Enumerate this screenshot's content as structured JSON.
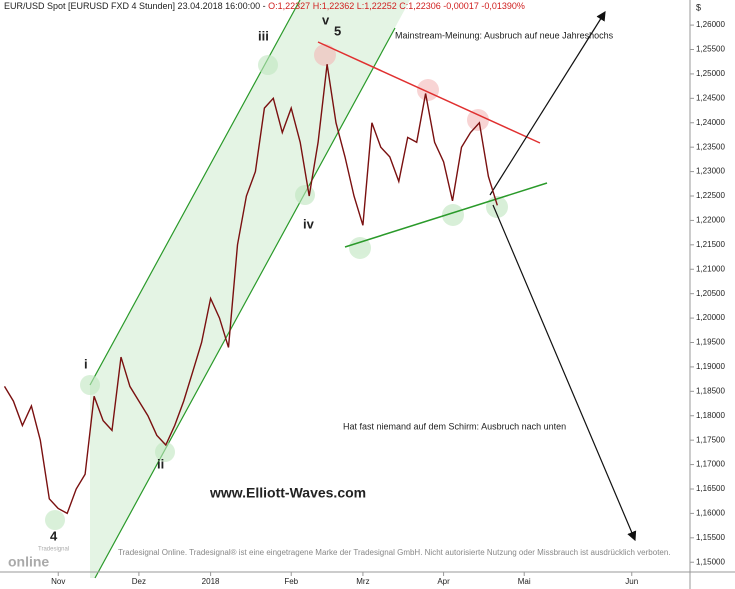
{
  "chart_data": {
    "type": "line",
    "title": "EUR/USD Spot [EURUSD FXD  4 Stunden] 23.04.2018 16:00:00 -",
    "ohlc": "O:1,22327 H:1,22362 L:1,22252 C:1,22306 -0,00017 -0,01390%",
    "currency": "$",
    "watermark": "www.Elliott-Waves.com",
    "footer": "Tradesignal Online. Tradesignal® ist eine eingetragene Marke der Tradesignal GmbH. Nicht autorisierte Nutzung oder Missbrauch ist ausdrücklich verboten.",
    "logo": "online",
    "logo_small": "Tradesignal",
    "notes": {
      "up": "Mainstream-Meinung: Ausbruch auf neue Jahreshochs",
      "down": "Hat fast niemand auf dem Schirm: Ausbruch nach unten"
    },
    "waves": {
      "w4": "4",
      "wi": "i",
      "wii": "ii",
      "wiii": "iii",
      "wiv": "iv",
      "wv": "v",
      "w5": "5"
    },
    "color": "#7a1010",
    "categories": [
      null,
      null,
      null,
      null,
      null,
      null,
      "Nov",
      null,
      null,
      null,
      null,
      null,
      null,
      null,
      null,
      "Dez",
      null,
      null,
      null,
      null,
      null,
      null,
      null,
      "2018",
      null,
      null,
      null,
      null,
      null,
      null,
      null,
      null,
      "Feb",
      null,
      null,
      null,
      null,
      null,
      null,
      null,
      "Mrz",
      null,
      null,
      null,
      null,
      null,
      null,
      null,
      null,
      "Apr",
      null,
      null,
      null,
      null,
      null,
      null,
      null,
      null,
      "Mai",
      null,
      null,
      null,
      null,
      null,
      null,
      null,
      null,
      null,
      null,
      null,
      "Jun",
      null,
      null,
      null,
      null,
      null,
      null
    ],
    "values": [
      1.186,
      1.183,
      1.178,
      1.182,
      1.175,
      1.163,
      1.161,
      1.16,
      1.165,
      1.168,
      1.184,
      1.179,
      1.177,
      1.192,
      1.186,
      1.183,
      1.18,
      1.176,
      1.174,
      1.178,
      1.183,
      1.189,
      1.195,
      1.204,
      1.2,
      1.194,
      1.215,
      1.225,
      1.23,
      1.243,
      1.245,
      1.238,
      1.243,
      1.236,
      1.225,
      1.236,
      1.252,
      1.24,
      1.233,
      1.225,
      1.219,
      1.24,
      1.235,
      1.233,
      1.228,
      1.237,
      1.236,
      1.246,
      1.236,
      1.232,
      1.224,
      1.235,
      1.238,
      1.24,
      1.229,
      1.2231,
      null,
      null,
      null,
      null,
      null,
      null,
      null,
      null,
      null,
      null,
      null,
      null,
      null,
      null,
      null,
      null,
      null,
      null,
      null,
      null,
      null
    ],
    "ylim": [
      1.148,
      1.2635
    ],
    "yticks": [
      {
        "value": 1.15,
        "label": "1,15000"
      },
      {
        "value": 1.155,
        "label": "1,15500"
      },
      {
        "value": 1.16,
        "label": "1,16000"
      },
      {
        "value": 1.165,
        "label": "1,16500"
      },
      {
        "value": 1.17,
        "label": "1,17000"
      },
      {
        "value": 1.175,
        "label": "1,17500"
      },
      {
        "value": 1.18,
        "label": "1,18000"
      },
      {
        "value": 1.185,
        "label": "1,18500"
      },
      {
        "value": 1.19,
        "label": "1,19000"
      },
      {
        "value": 1.195,
        "label": "1,19500"
      },
      {
        "value": 1.2,
        "label": "1,20000"
      },
      {
        "value": 1.205,
        "label": "1,20500"
      },
      {
        "value": 1.21,
        "label": "1,21000"
      },
      {
        "value": 1.215,
        "label": "1,21500"
      },
      {
        "value": 1.22,
        "label": "1,22000"
      },
      {
        "value": 1.225,
        "label": "1,22500"
      },
      {
        "value": 1.23,
        "label": "1,23000"
      },
      {
        "value": 1.235,
        "label": "1,23500"
      },
      {
        "value": 1.24,
        "label": "1,24000"
      },
      {
        "value": 1.245,
        "label": "1,24500"
      },
      {
        "value": 1.25,
        "label": "1,25000"
      },
      {
        "value": 1.255,
        "label": "1,25500"
      },
      {
        "value": 1.26,
        "label": "1,26000"
      }
    ]
  }
}
